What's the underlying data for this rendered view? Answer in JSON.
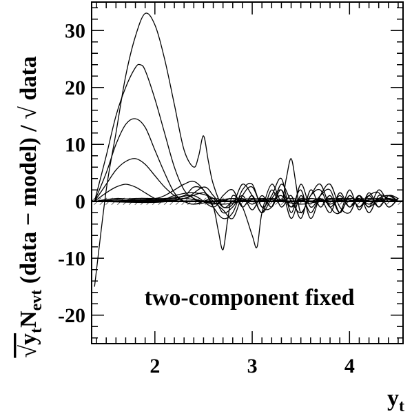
{
  "chart_data": {
    "type": "line",
    "title": "",
    "ylabel_parts": {
      "main": "(data − model) / √ data",
      "prefix": "√y",
      "prefix_sub": "t",
      "n": "N",
      "n_sub": "evt"
    },
    "xlabel": "y",
    "xlabel_sub": "t",
    "annotation": "two-component fixed",
    "xlim": [
      1.35,
      4.55
    ],
    "ylim": [
      -25,
      35
    ],
    "x_ticks": [
      2,
      3,
      4
    ],
    "x_tick_labels": [
      "2",
      "3",
      "4"
    ],
    "y_ticks": [
      -20,
      -10,
      0,
      10,
      20,
      30
    ],
    "y_tick_labels": [
      "-20",
      "-10",
      "0",
      "10",
      "20",
      "30"
    ],
    "grid": false,
    "legend": "none",
    "error_band": {
      "label": "",
      "y_low": -0.6,
      "y_high": 0.6,
      "style": "hatched"
    },
    "series": [
      {
        "x": [
          1.38,
          1.5,
          1.6,
          1.7,
          1.8,
          1.9,
          2.0,
          2.1,
          2.2,
          2.3,
          2.4,
          2.45,
          2.5,
          2.55,
          2.6,
          2.7,
          2.8,
          2.9,
          3.0,
          3.1,
          3.2,
          3.3,
          3.4,
          3.5,
          3.6,
          3.7,
          3.8,
          3.9,
          4.0,
          4.1,
          4.2,
          4.3,
          4.4,
          4.5
        ],
        "y": [
          -15,
          2,
          12,
          22,
          29,
          33,
          31,
          25,
          17,
          9,
          6,
          8,
          11.5,
          7,
          3,
          -1,
          0,
          0.5,
          -0.5,
          0.5,
          0,
          1,
          -1,
          0.5,
          0,
          0.5,
          -0.5,
          0.5,
          0,
          0.5,
          -0.5,
          0.5,
          1,
          0
        ]
      },
      {
        "x": [
          1.38,
          1.5,
          1.6,
          1.7,
          1.8,
          1.85,
          1.9,
          2.0,
          2.1,
          2.2,
          2.3,
          2.4,
          2.5,
          2.6,
          2.7,
          2.8,
          3.0,
          3.2,
          3.4,
          3.6,
          3.8,
          4.0,
          4.2,
          4.4,
          4.5
        ],
        "y": [
          0,
          8,
          15,
          20,
          23.5,
          24,
          23,
          18,
          12,
          6,
          2,
          0.5,
          0,
          -0.5,
          0,
          0.5,
          0,
          0.5,
          0,
          0.5,
          0,
          0.5,
          0,
          0.5,
          0
        ]
      },
      {
        "x": [
          1.38,
          1.5,
          1.6,
          1.7,
          1.8,
          1.9,
          2.0,
          2.1,
          2.2,
          2.3,
          2.4,
          2.5,
          2.6,
          2.8,
          3.0,
          3.2,
          3.4,
          3.6,
          3.8,
          4.0,
          4.2,
          4.4,
          4.5
        ],
        "y": [
          0,
          5,
          10,
          13.5,
          14.5,
          13,
          9,
          5,
          1.5,
          0,
          -0.5,
          0,
          0.5,
          0,
          0.5,
          0,
          0.5,
          0,
          0.5,
          0,
          0.5,
          0,
          0
        ]
      },
      {
        "x": [
          1.38,
          1.5,
          1.6,
          1.7,
          1.8,
          1.9,
          2.0,
          2.1,
          2.2,
          2.3,
          2.4,
          2.6,
          2.8,
          3.0,
          3.2,
          3.4,
          3.6,
          3.8,
          4.0,
          4.2,
          4.4,
          4.5
        ],
        "y": [
          0,
          3,
          5.5,
          7,
          7.5,
          6.5,
          4.5,
          2.5,
          1,
          0,
          -0.5,
          0,
          0.5,
          0,
          0.5,
          0,
          0.5,
          0,
          0.5,
          0,
          0.5,
          0
        ]
      },
      {
        "x": [
          1.38,
          1.5,
          1.6,
          1.7,
          1.8,
          1.9,
          2.0,
          2.1,
          2.3,
          2.5,
          2.7,
          2.9,
          3.1,
          3.3,
          3.5,
          3.7,
          3.9,
          4.1,
          4.3,
          4.5
        ],
        "y": [
          0,
          1.5,
          2.5,
          3,
          2.5,
          1.5,
          0.5,
          0,
          0.5,
          0,
          -0.5,
          0,
          0.5,
          0,
          -0.5,
          0,
          0.5,
          0,
          0.5,
          0
        ]
      },
      {
        "x": [
          1.38,
          1.6,
          1.8,
          2.0,
          2.1,
          2.2,
          2.3,
          2.4,
          2.5,
          2.6,
          2.65,
          2.7,
          2.75,
          2.8,
          2.9,
          3.0,
          3.05,
          3.1,
          3.2,
          3.3,
          3.35,
          3.4,
          3.45,
          3.5,
          3.6,
          3.7,
          3.8,
          3.9,
          4.0,
          4.1,
          4.2,
          4.3,
          4.4,
          4.5
        ],
        "y": [
          0,
          0.5,
          0.3,
          0.5,
          1,
          2,
          3,
          3.5,
          2,
          -1,
          -5,
          -8.5,
          -3,
          1,
          -1,
          -6,
          -8,
          -2,
          3,
          0,
          4,
          7.5,
          3,
          -2,
          1,
          2,
          -1,
          1,
          -1,
          0.5,
          -1,
          0.5,
          1,
          0
        ]
      },
      {
        "x": [
          1.38,
          1.8,
          2.1,
          2.3,
          2.4,
          2.5,
          2.6,
          2.7,
          2.8,
          2.9,
          3.0,
          3.1,
          3.2,
          3.3,
          3.4,
          3.5,
          3.6,
          3.7,
          3.8,
          3.9,
          4.0,
          4.1,
          4.2,
          4.3,
          4.4,
          4.5
        ],
        "y": [
          0,
          0.5,
          0.5,
          1,
          2.5,
          2,
          -1,
          -3,
          -2,
          2,
          3,
          -1,
          1,
          4,
          -2,
          3,
          -1,
          1,
          2,
          -2,
          1,
          -1,
          1,
          -1,
          1,
          0.5
        ]
      },
      {
        "x": [
          1.38,
          2.0,
          2.2,
          2.4,
          2.6,
          2.7,
          2.8,
          2.9,
          3.0,
          3.1,
          3.2,
          3.3,
          3.4,
          3.5,
          3.6,
          3.7,
          3.8,
          3.9,
          4.0,
          4.1,
          4.2,
          4.3,
          4.4,
          4.5
        ],
        "y": [
          0,
          0,
          1,
          1.5,
          0.5,
          -2,
          -1,
          1,
          -1.5,
          1,
          -1,
          2,
          -3,
          1,
          -2,
          0.5,
          -2,
          1.5,
          -1,
          1,
          -2,
          1,
          0.5,
          0
        ]
      },
      {
        "x": [
          1.38,
          2.0,
          2.2,
          2.4,
          2.6,
          2.7,
          2.8,
          2.9,
          3.0,
          3.1,
          3.2,
          3.3,
          3.4,
          3.5,
          3.6,
          3.7,
          3.8,
          3.9,
          4.0,
          4.1,
          4.2,
          4.3,
          4.4,
          4.5
        ],
        "y": [
          0,
          0.3,
          0.5,
          1,
          -1,
          1,
          2,
          -1,
          1,
          -2,
          2,
          -1,
          1,
          -3,
          2,
          -1,
          1,
          -2,
          1,
          -1,
          1,
          1.5,
          -1,
          0.5
        ]
      },
      {
        "x": [
          1.38,
          2.0,
          2.3,
          2.5,
          2.6,
          2.7,
          2.8,
          2.9,
          3.0,
          3.1,
          3.2,
          3.3,
          3.4,
          3.5,
          3.6,
          3.7,
          3.8,
          3.9,
          4.0,
          4.1,
          4.2,
          4.3,
          4.4,
          4.5
        ],
        "y": [
          0,
          -0.2,
          0.5,
          1.5,
          0,
          -1.5,
          -3,
          1,
          2.5,
          -1,
          -1,
          3,
          0,
          -2,
          1,
          3,
          -1,
          -2,
          2,
          -1.5,
          1.5,
          -1,
          1,
          0
        ]
      },
      {
        "x": [
          1.38,
          2.0,
          2.3,
          2.5,
          2.6,
          2.7,
          2.8,
          2.9,
          3.0,
          3.1,
          3.2,
          3.3,
          3.4,
          3.5,
          3.6,
          3.7,
          3.8,
          3.9,
          4.0,
          4.1,
          4.2,
          4.3,
          4.4,
          4.5
        ],
        "y": [
          0,
          0.2,
          0.5,
          2.5,
          1,
          -1,
          -0.5,
          3,
          1,
          -2,
          0.5,
          2,
          -1,
          2,
          -3,
          1,
          3,
          -1,
          -2,
          1,
          -1,
          2,
          0,
          0.5
        ]
      }
    ]
  }
}
